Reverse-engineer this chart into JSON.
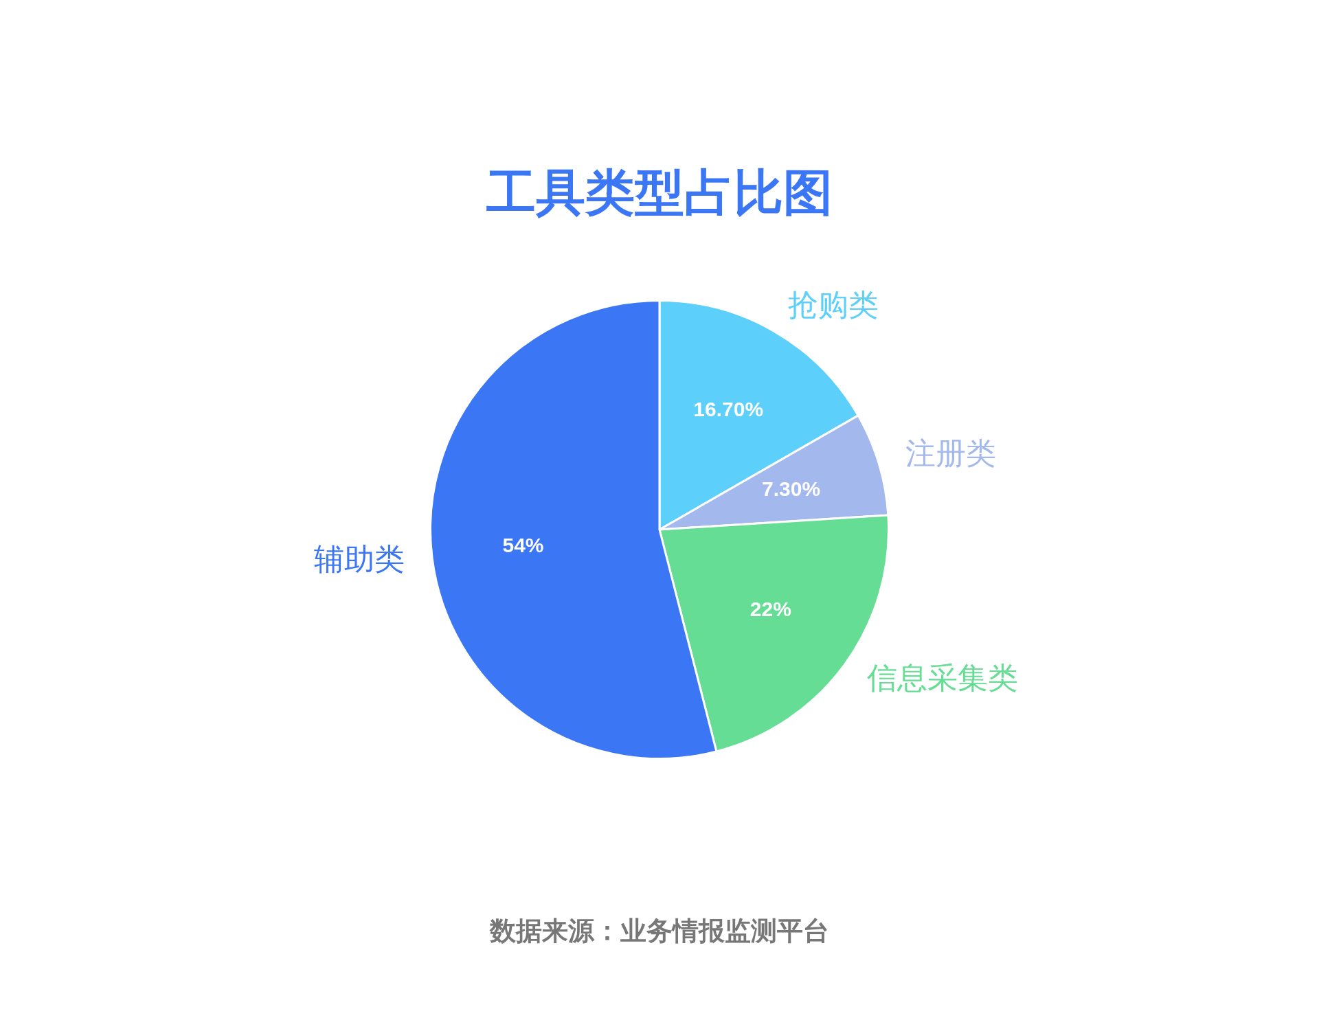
{
  "chart_data": {
    "type": "pie",
    "title": "工具类型占比图",
    "categories": [
      "抢购类",
      "注册类",
      "信息采集类",
      "辅助类"
    ],
    "values": [
      16.7,
      7.3,
      22,
      54
    ],
    "colors": [
      "#5ccffa",
      "#a3b8ec",
      "#66dd94",
      "#3b76f5"
    ],
    "value_labels": [
      "16.70%",
      "7.30%",
      "22%",
      "54%"
    ],
    "legend": false,
    "annotations": [
      "数据来源：业务情报监测平台"
    ]
  }
}
